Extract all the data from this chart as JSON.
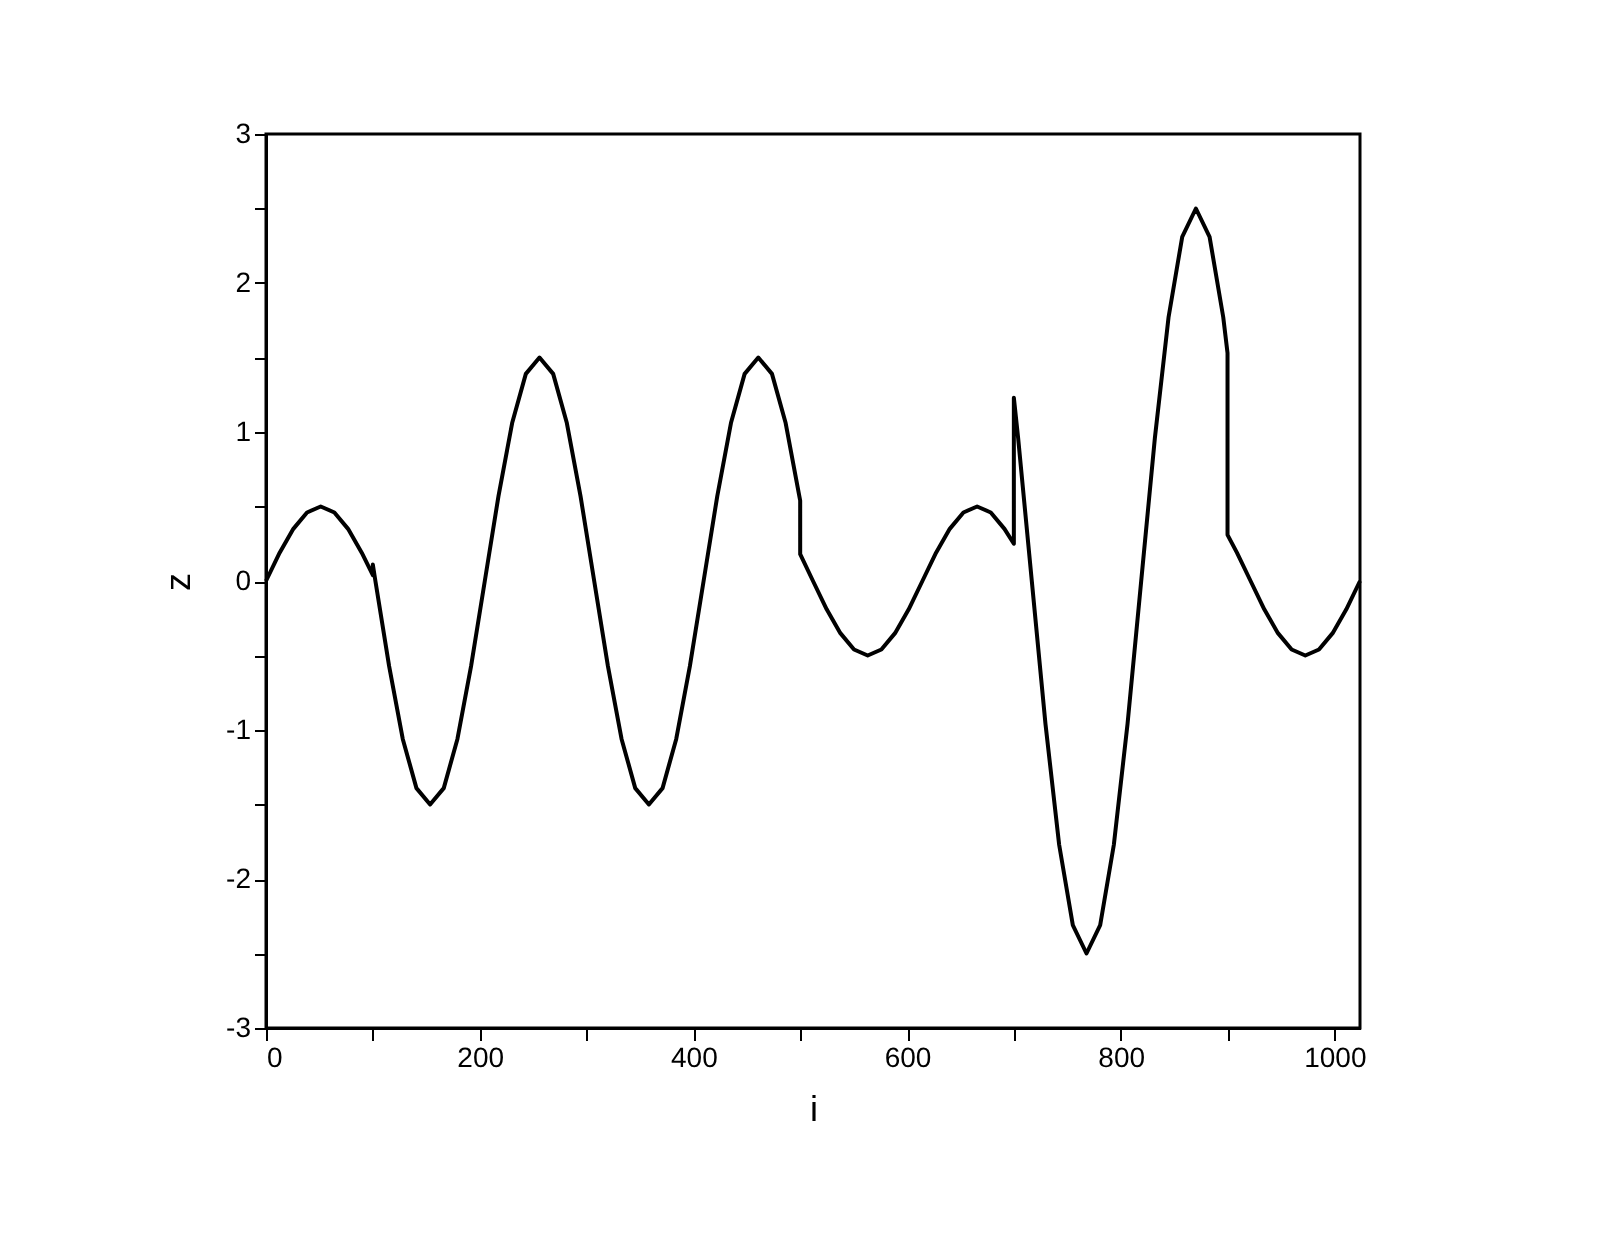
{
  "chart_data": {
    "type": "line",
    "xlabel": "i",
    "ylabel": "z",
    "xlim": [
      0,
      1024
    ],
    "ylim": [
      -3,
      3
    ],
    "xticks": [
      0,
      {
        "value": 100,
        "label": null
      },
      200,
      {
        "value": 300,
        "label": null
      },
      400,
      {
        "value": 500,
        "label": null
      },
      600,
      {
        "value": 700,
        "label": null
      },
      800,
      {
        "value": 900,
        "label": null
      },
      1000
    ],
    "yticks": [
      -3,
      {
        "value": -2.5,
        "label": null
      },
      -2,
      {
        "value": -1.5,
        "label": null
      },
      -1,
      {
        "value": -0.5,
        "label": null
      },
      0,
      {
        "value": 0.5,
        "label": null
      },
      1,
      {
        "value": 1.5,
        "label": null
      },
      2,
      {
        "value": 2.5,
        "label": null
      },
      3
    ],
    "grid": false,
    "marker": "none",
    "line_style": "solid",
    "series": [
      {
        "color": "#000000",
        "x": [
          0,
          12.8,
          25.6,
          38.4,
          51.2,
          64,
          76.8,
          89.6,
          100,
          100,
          102.4,
          115.2,
          128,
          140.8,
          153.6,
          166.4,
          179.2,
          192,
          204.8,
          217.6,
          230.4,
          243.2,
          256,
          268.8,
          281.6,
          294.4,
          307.2,
          320,
          332.8,
          345.6,
          358.4,
          371.2,
          384,
          396.8,
          409.6,
          422.4,
          435.2,
          448,
          460.8,
          473.6,
          486.4,
          499.2,
          500,
          500,
          512,
          524.8,
          537.6,
          550.4,
          563.2,
          576,
          588.8,
          601.6,
          614.4,
          627.2,
          640,
          652.8,
          665.6,
          678.4,
          691.2,
          700,
          700,
          704,
          716.8,
          729.6,
          742.4,
          755.2,
          768,
          780.8,
          793.6,
          806.4,
          819.2,
          832,
          844.8,
          857.6,
          870.4,
          883.2,
          896,
          900,
          900,
          908.8,
          921.6,
          934.4,
          947.2,
          960,
          972.8,
          985.6,
          998.4,
          1011.2,
          1024
        ],
        "values": [
          0,
          0.19,
          0.35,
          0.46,
          0.5,
          0.46,
          0.35,
          0.19,
          0.04,
          0.11,
          0,
          -0.57,
          -1.06,
          -1.39,
          -1.5,
          -1.39,
          -1.06,
          -0.57,
          0,
          0.57,
          1.06,
          1.39,
          1.5,
          1.39,
          1.06,
          0.57,
          0,
          -0.57,
          -1.06,
          -1.39,
          -1.5,
          -1.39,
          -1.06,
          -0.57,
          0,
          0.57,
          1.06,
          1.39,
          1.5,
          1.39,
          1.06,
          0.57,
          0.54,
          0.18,
          0,
          -0.19,
          -0.35,
          -0.46,
          -0.5,
          -0.46,
          -0.35,
          -0.19,
          0,
          0.19,
          0.35,
          0.46,
          0.5,
          0.46,
          0.35,
          0.25,
          1.23,
          0.96,
          0,
          -0.96,
          -1.77,
          -2.31,
          -2.5,
          -2.31,
          -1.77,
          -0.96,
          0,
          0.96,
          1.77,
          2.31,
          2.5,
          2.31,
          1.77,
          1.53,
          0.31,
          0.19,
          0,
          -0.19,
          -0.35,
          -0.46,
          -0.5,
          -0.46,
          -0.35,
          -0.19,
          0
        ]
      }
    ]
  }
}
